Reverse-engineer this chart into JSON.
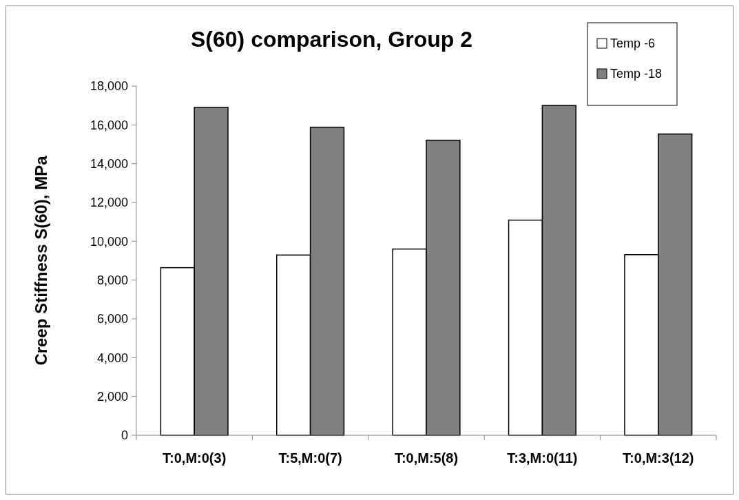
{
  "chart_data": {
    "type": "bar",
    "title": "S(60) comparison, Group 2",
    "ylabel": "Creep Stiffness S(60), MPa",
    "categories": [
      "T:0,M:0(3)",
      "T:5,M:0(7)",
      "T:0,M:5(8)",
      "T:3,M:0(11)",
      "T:0,M:3(12)"
    ],
    "series": [
      {
        "name": "Temp -6",
        "color": "#ffffff",
        "values": [
          8640,
          9290,
          9600,
          11090,
          9310
        ]
      },
      {
        "name": "Temp -18",
        "color": "#808080",
        "values": [
          16900,
          15880,
          15210,
          17000,
          15530
        ]
      }
    ],
    "ylim": [
      0,
      18000
    ],
    "yticks": [
      {
        "value": 0,
        "label": "0"
      },
      {
        "value": 2000,
        "label": "2,000"
      },
      {
        "value": 4000,
        "label": "4,000"
      },
      {
        "value": 6000,
        "label": "6,000"
      },
      {
        "value": 8000,
        "label": "8,000"
      },
      {
        "value": 10000,
        "label": "10,000"
      },
      {
        "value": 12000,
        "label": "12,000"
      },
      {
        "value": 14000,
        "label": "14,000"
      },
      {
        "value": 16000,
        "label": "16,000"
      },
      {
        "value": 18000,
        "label": "18,000"
      }
    ],
    "grid": false,
    "legend": "top right"
  }
}
